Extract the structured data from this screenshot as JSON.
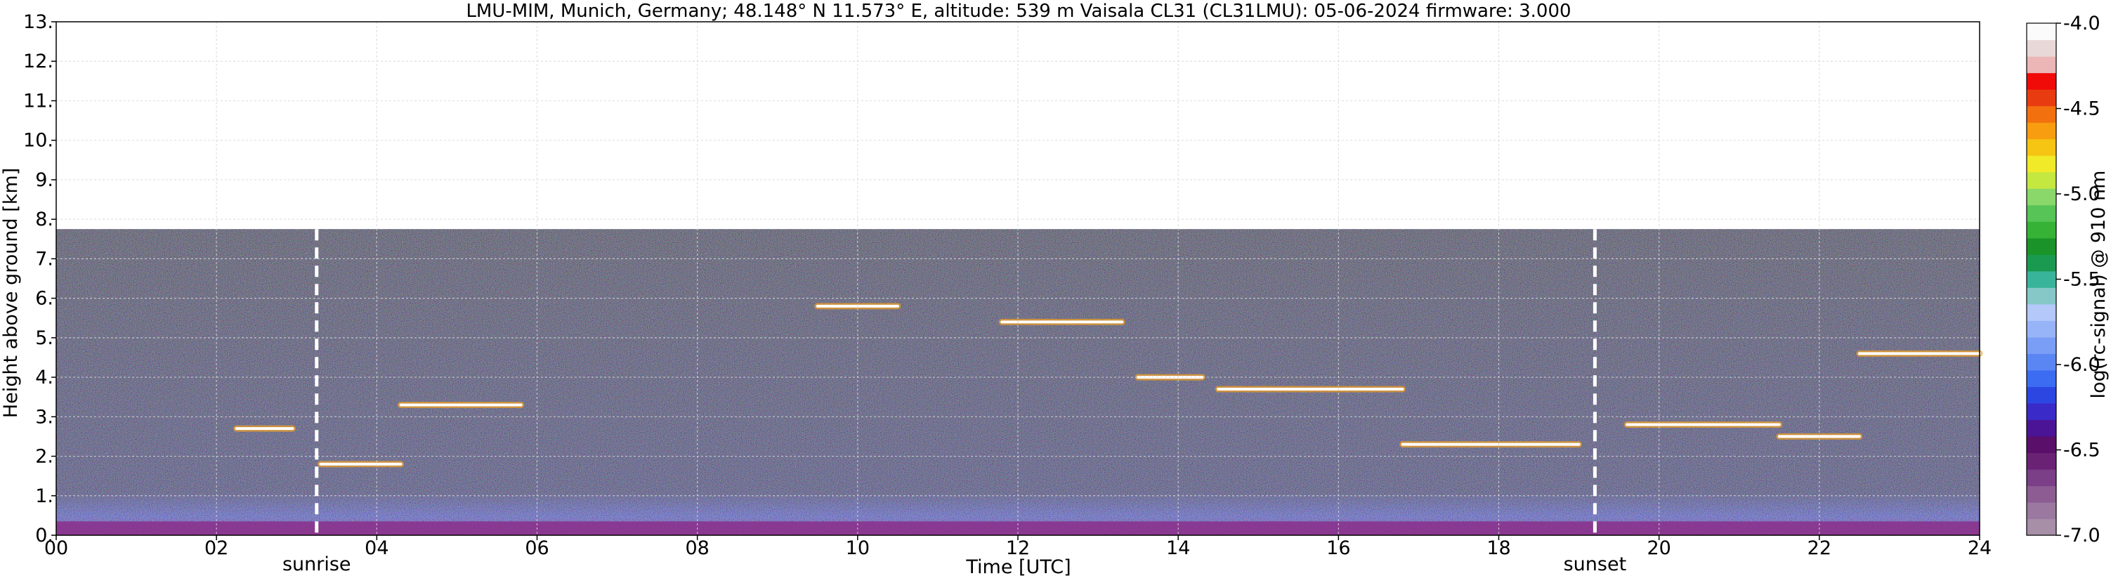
{
  "chart_data": {
    "type": "heatmap",
    "title": "LMU-MIM, Munich, Germany; 48.148° N 11.573° E, altitude: 539 m    Vaisala CL31 (CL31LMU): 05-06-2024    firmware: 3.000",
    "xlabel": "Time [UTC]",
    "ylabel": "Height above ground [km]",
    "xlim": [
      0,
      24
    ],
    "ylim": [
      0,
      13
    ],
    "x_ticks": [
      0,
      2,
      4,
      6,
      8,
      10,
      12,
      14,
      16,
      18,
      20,
      22,
      24
    ],
    "x_tick_labels": [
      "00",
      "02",
      "04",
      "06",
      "08",
      "10",
      "12",
      "14",
      "16",
      "18",
      "20",
      "22",
      "24"
    ],
    "y_ticks": [
      0,
      1,
      2,
      3,
      4,
      5,
      6,
      7,
      8,
      9,
      10,
      11,
      12,
      13
    ],
    "y_tick_labels": [
      "0.",
      "1.",
      "2.",
      "3.",
      "4.",
      "5.",
      "6.",
      "7.",
      "8.",
      "9.",
      "10.",
      "11.",
      "12.",
      "13."
    ],
    "grid": true,
    "signal_top_km": 7.75,
    "events": [
      {
        "name": "sunrise",
        "time": 3.25
      },
      {
        "name": "sunset",
        "time": 19.2
      }
    ],
    "cloud_layers": [
      {
        "t_start": 2.25,
        "t_end": 2.95,
        "height": 2.7
      },
      {
        "t_start": 3.3,
        "t_end": 4.3,
        "height": 1.8
      },
      {
        "t_start": 4.3,
        "t_end": 5.8,
        "height": 3.3
      },
      {
        "t_start": 9.5,
        "t_end": 10.5,
        "height": 5.8
      },
      {
        "t_start": 11.8,
        "t_end": 13.3,
        "height": 5.4
      },
      {
        "t_start": 13.5,
        "t_end": 14.3,
        "height": 4.0
      },
      {
        "t_start": 14.5,
        "t_end": 16.8,
        "height": 3.7
      },
      {
        "t_start": 16.8,
        "t_end": 19.0,
        "height": 2.3
      },
      {
        "t_start": 19.6,
        "t_end": 21.5,
        "height": 2.8
      },
      {
        "t_start": 21.5,
        "t_end": 22.5,
        "height": 2.5
      },
      {
        "t_start": 22.5,
        "t_end": 24.0,
        "height": 4.6
      }
    ],
    "colorbar": {
      "label": "log(rc-signal) @ 910 nm",
      "range": [
        -7.0,
        -4.0
      ],
      "tick_values": [
        -7.0,
        -6.5,
        -6.0,
        -5.5,
        -5.0,
        -4.5,
        -4.0
      ],
      "tick_labels": [
        "-7.0",
        "-6.5",
        "-6.0",
        "-5.5",
        "-5.0",
        "-4.5",
        "-4.0"
      ],
      "colors": [
        "#a78fa8",
        "#9b78a0",
        "#8c5c93",
        "#7a3f86",
        "#6a2275",
        "#5a0f6a",
        "#4b1496",
        "#3a2ac8",
        "#2c46e2",
        "#3b6cf2",
        "#5a86f4",
        "#7a9ef6",
        "#98b4f8",
        "#b4c8fa",
        "#86c8c8",
        "#38b49a",
        "#1a9a50",
        "#1a9428",
        "#36b236",
        "#56c456",
        "#8ad86a",
        "#c4e840",
        "#f0ea28",
        "#f6c412",
        "#f89c10",
        "#f2700e",
        "#e83c10",
        "#f00a08",
        "#ecb6b6",
        "#e8d8d8",
        "#fbfbfb"
      ]
    }
  }
}
